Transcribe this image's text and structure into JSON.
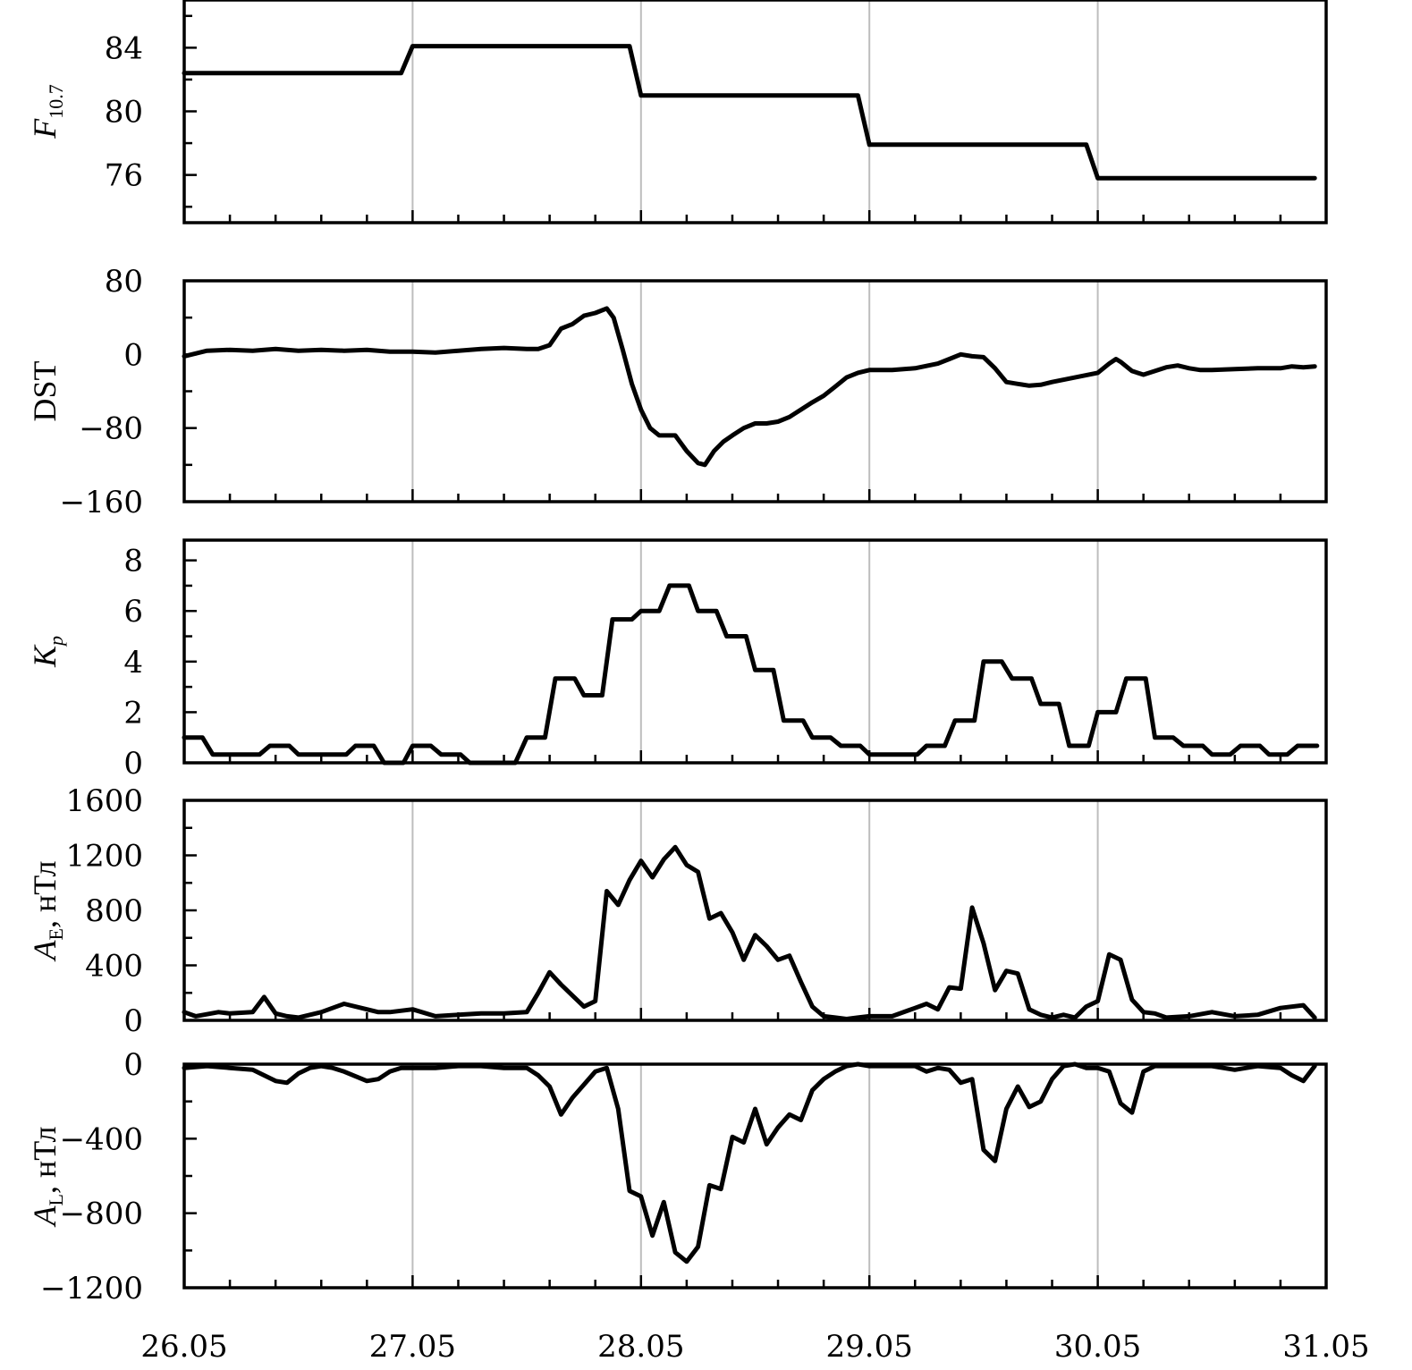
{
  "chart_data": {
    "type": "line",
    "x_categories": [
      "26.05",
      "27.05",
      "28.05",
      "29.05",
      "30.05",
      "31.05"
    ],
    "x_range": [
      0,
      5
    ],
    "x_unit": "days from 26.05",
    "panels": [
      {
        "id": "f107",
        "ylabel_main": "F",
        "ylabel_sub": "10.7",
        "ylabel_suffix": "",
        "ylim": [
          73,
          87
        ],
        "yticks": [
          "76",
          "80",
          "84"
        ],
        "ytick_values": [
          76,
          80,
          84
        ],
        "minor_step": 2,
        "series": {
          "x": [
            0,
            0.95,
            1.0,
            1.95,
            2.0,
            2.95,
            3.0,
            3.95,
            4.0,
            4.95
          ],
          "y": [
            82.4,
            82.4,
            84.1,
            84.1,
            81.0,
            81.0,
            77.9,
            77.9,
            75.8,
            75.8
          ]
        }
      },
      {
        "id": "dst",
        "ylabel_main": "DST",
        "ylabel_sub": "",
        "ylabel_suffix": "",
        "ylim": [
          -160,
          80
        ],
        "yticks": [
          "80",
          "0",
          "−80",
          "−160"
        ],
        "ytick_values": [
          80,
          0,
          -80,
          -160
        ],
        "minor_step": 40,
        "series": {
          "x": [
            0,
            0.1,
            0.2,
            0.3,
            0.4,
            0.5,
            0.6,
            0.7,
            0.8,
            0.9,
            1.0,
            1.1,
            1.2,
            1.3,
            1.4,
            1.5,
            1.55,
            1.6,
            1.65,
            1.7,
            1.75,
            1.8,
            1.85,
            1.88,
            1.92,
            1.96,
            2.0,
            2.04,
            2.08,
            2.15,
            2.2,
            2.25,
            2.28,
            2.32,
            2.36,
            2.4,
            2.45,
            2.5,
            2.55,
            2.6,
            2.65,
            2.7,
            2.75,
            2.8,
            2.85,
            2.9,
            2.95,
            3.0,
            3.1,
            3.2,
            3.3,
            3.35,
            3.4,
            3.45,
            3.5,
            3.55,
            3.6,
            3.65,
            3.7,
            3.75,
            3.8,
            3.9,
            4.0,
            4.05,
            4.08,
            4.1,
            4.15,
            4.2,
            4.25,
            4.3,
            4.35,
            4.4,
            4.45,
            4.5,
            4.6,
            4.7,
            4.8,
            4.85,
            4.9,
            4.95
          ],
          "y": [
            -2,
            4,
            5,
            4,
            6,
            4,
            5,
            4,
            5,
            3,
            3,
            2,
            4,
            6,
            7,
            6,
            6,
            10,
            28,
            33,
            42,
            45,
            50,
            40,
            5,
            -32,
            -60,
            -80,
            -88,
            -88,
            -105,
            -118,
            -120,
            -105,
            -95,
            -88,
            -80,
            -75,
            -75,
            -73,
            -68,
            -60,
            -52,
            -45,
            -35,
            -25,
            -20,
            -17,
            -17,
            -15,
            -10,
            -5,
            0,
            -2,
            -3,
            -15,
            -30,
            -32,
            -34,
            -33,
            -30,
            -25,
            -20,
            -10,
            -5,
            -8,
            -18,
            -22,
            -18,
            -14,
            -12,
            -15,
            -17,
            -17,
            -16,
            -15,
            -15,
            -13,
            -14,
            -13
          ]
        }
      },
      {
        "id": "kp",
        "ylabel_main": "K",
        "ylabel_sub": "p",
        "ylabel_suffix": "",
        "ylim": [
          0,
          8.8
        ],
        "yticks": [
          "8",
          "6",
          "4",
          "2",
          "0"
        ],
        "ytick_values": [
          8,
          6,
          4,
          2,
          0
        ],
        "minor_step": 1,
        "series": {
          "x": [
            0,
            0.08,
            0.125,
            0.33,
            0.375,
            0.46,
            0.5,
            0.71,
            0.75,
            0.83,
            0.875,
            0.96,
            1.0,
            1.08,
            1.125,
            1.21,
            1.25,
            1.45,
            1.5,
            1.58,
            1.625,
            1.71,
            1.75,
            1.83,
            1.875,
            1.96,
            2.0,
            2.08,
            2.125,
            2.21,
            2.25,
            2.33,
            2.375,
            2.46,
            2.5,
            2.58,
            2.625,
            2.71,
            2.75,
            2.83,
            2.875,
            2.96,
            3.0,
            3.21,
            3.25,
            3.33,
            3.375,
            3.46,
            3.5,
            3.58,
            3.625,
            3.71,
            3.75,
            3.83,
            3.875,
            3.96,
            4.0,
            4.08,
            4.125,
            4.21,
            4.25,
            4.33,
            4.375,
            4.46,
            4.5,
            4.58,
            4.625,
            4.71,
            4.75,
            4.83,
            4.875,
            4.96
          ],
          "y": [
            1,
            1,
            0.33,
            0.33,
            0.67,
            0.67,
            0.33,
            0.33,
            0.67,
            0.67,
            0,
            0,
            0.67,
            0.67,
            0.33,
            0.33,
            0,
            0,
            1,
            1,
            3.33,
            3.33,
            2.67,
            2.67,
            5.67,
            5.67,
            6,
            6,
            7,
            7,
            6,
            6,
            5,
            5,
            3.67,
            3.67,
            1.67,
            1.67,
            1,
            1,
            0.67,
            0.67,
            0.33,
            0.33,
            0.67,
            0.67,
            1.67,
            1.67,
            4,
            4,
            3.33,
            3.33,
            2.33,
            2.33,
            0.67,
            0.67,
            2,
            2,
            3.33,
            3.33,
            1,
            1,
            0.67,
            0.67,
            0.33,
            0.33,
            0.67,
            0.67,
            0.33,
            0.33,
            0.67,
            0.67
          ]
        }
      },
      {
        "id": "ae",
        "ylabel_main": "A",
        "ylabel_sub": "E",
        "ylabel_suffix": ", нТл",
        "ylim": [
          0,
          1600
        ],
        "yticks": [
          "1600",
          "1200",
          "800",
          "400",
          "0"
        ],
        "ytick_values": [
          1600,
          1200,
          800,
          400,
          0
        ],
        "minor_step": 200,
        "series": {
          "x": [
            0,
            0.05,
            0.15,
            0.2,
            0.3,
            0.35,
            0.4,
            0.45,
            0.5,
            0.6,
            0.7,
            0.8,
            0.85,
            0.9,
            1.0,
            1.1,
            1.2,
            1.3,
            1.4,
            1.5,
            1.55,
            1.6,
            1.65,
            1.7,
            1.75,
            1.8,
            1.85,
            1.9,
            1.95,
            2.0,
            2.05,
            2.1,
            2.15,
            2.2,
            2.25,
            2.3,
            2.35,
            2.4,
            2.45,
            2.5,
            2.55,
            2.6,
            2.65,
            2.7,
            2.75,
            2.8,
            2.85,
            2.9,
            2.95,
            3.0,
            3.1,
            3.2,
            3.25,
            3.3,
            3.35,
            3.4,
            3.45,
            3.5,
            3.55,
            3.6,
            3.65,
            3.7,
            3.75,
            3.8,
            3.85,
            3.9,
            3.95,
            4.0,
            4.05,
            4.1,
            4.15,
            4.2,
            4.25,
            4.3,
            4.4,
            4.5,
            4.6,
            4.7,
            4.8,
            4.9,
            4.95
          ],
          "y": [
            60,
            30,
            60,
            50,
            60,
            170,
            50,
            30,
            20,
            60,
            120,
            80,
            60,
            60,
            80,
            30,
            40,
            50,
            50,
            60,
            200,
            350,
            260,
            180,
            100,
            140,
            940,
            840,
            1020,
            1160,
            1040,
            1170,
            1260,
            1130,
            1080,
            740,
            780,
            640,
            440,
            620,
            540,
            440,
            470,
            280,
            100,
            30,
            20,
            10,
            20,
            30,
            30,
            90,
            120,
            80,
            240,
            230,
            820,
            560,
            220,
            360,
            340,
            80,
            40,
            20,
            40,
            20,
            100,
            140,
            480,
            440,
            150,
            60,
            50,
            20,
            30,
            60,
            30,
            40,
            90,
            110,
            20
          ]
        }
      },
      {
        "id": "al",
        "ylabel_main": "A",
        "ylabel_sub": "L",
        "ylabel_suffix": ", нТл",
        "ylim": [
          -1200,
          0
        ],
        "yticks": [
          "0",
          "−400",
          "−800",
          "−1200"
        ],
        "ytick_values": [
          0,
          -400,
          -800,
          -1200
        ],
        "minor_step": 200,
        "series": {
          "x": [
            0,
            0.1,
            0.2,
            0.3,
            0.4,
            0.45,
            0.5,
            0.55,
            0.6,
            0.65,
            0.7,
            0.8,
            0.85,
            0.9,
            0.95,
            1.0,
            1.1,
            1.2,
            1.3,
            1.4,
            1.5,
            1.55,
            1.6,
            1.65,
            1.7,
            1.75,
            1.8,
            1.85,
            1.9,
            1.95,
            2.0,
            2.05,
            2.1,
            2.15,
            2.2,
            2.25,
            2.3,
            2.35,
            2.4,
            2.45,
            2.5,
            2.55,
            2.6,
            2.65,
            2.7,
            2.75,
            2.8,
            2.85,
            2.9,
            2.95,
            3.0,
            3.1,
            3.2,
            3.25,
            3.3,
            3.35,
            3.4,
            3.45,
            3.5,
            3.55,
            3.6,
            3.65,
            3.7,
            3.75,
            3.8,
            3.85,
            3.9,
            3.95,
            4.0,
            4.05,
            4.1,
            4.15,
            4.2,
            4.25,
            4.3,
            4.4,
            4.5,
            4.6,
            4.7,
            4.8,
            4.85,
            4.9,
            4.95
          ],
          "y": [
            -20,
            -10,
            -20,
            -30,
            -90,
            -100,
            -50,
            -20,
            -10,
            -20,
            -40,
            -90,
            -80,
            -40,
            -20,
            -20,
            -20,
            -10,
            -10,
            -20,
            -20,
            -60,
            -120,
            -270,
            -180,
            -110,
            -40,
            -20,
            -240,
            -680,
            -710,
            -920,
            -740,
            -1010,
            -1060,
            -980,
            -650,
            -670,
            -390,
            -420,
            -240,
            -430,
            -340,
            -270,
            -300,
            -140,
            -80,
            -40,
            -10,
            0,
            -10,
            -10,
            -10,
            -40,
            -20,
            -30,
            -100,
            -80,
            -460,
            -520,
            -240,
            -120,
            -230,
            -200,
            -80,
            -10,
            0,
            -20,
            -20,
            -40,
            -210,
            -260,
            -40,
            -10,
            -10,
            -10,
            -10,
            -30,
            -10,
            -20,
            -60,
            -90,
            -10
          ]
        }
      }
    ]
  }
}
